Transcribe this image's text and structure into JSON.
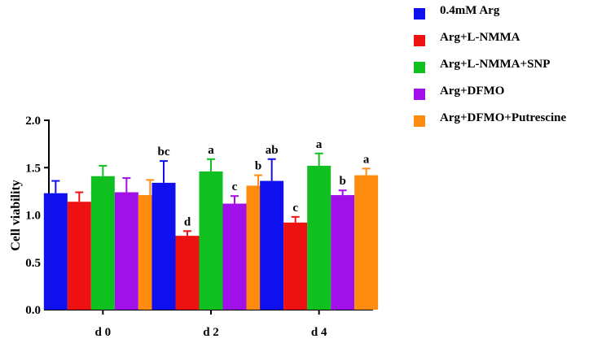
{
  "chart_data": {
    "type": "bar",
    "ylabel": "Cell viability",
    "xlabel": "",
    "ylim": [
      0,
      2.0
    ],
    "yticks": [
      "0.0",
      "0.5",
      "1.0",
      "1.5",
      "2.0"
    ],
    "categories": [
      "d 0",
      "d 2",
      "d 4"
    ],
    "legend_position": "top-right",
    "series": [
      {
        "name": "0.4mM Arg",
        "color": "#1010ee",
        "values": [
          1.23,
          1.34,
          1.36
        ],
        "errors": [
          0.13,
          0.23,
          0.23
        ],
        "labels": [
          "",
          "bc",
          "ab"
        ]
      },
      {
        "name": "Arg+L-NMMA",
        "color": "#ee1111",
        "values": [
          1.14,
          0.78,
          0.92
        ],
        "errors": [
          0.1,
          0.05,
          0.06
        ],
        "labels": [
          "",
          "d",
          "c"
        ]
      },
      {
        "name": "Arg+L-NMMA+SNP",
        "color": "#10c020",
        "values": [
          1.41,
          1.46,
          1.52
        ],
        "errors": [
          0.11,
          0.13,
          0.13
        ],
        "labels": [
          "",
          "a",
          "a"
        ]
      },
      {
        "name": "Arg+DFMO",
        "color": "#a010e8",
        "values": [
          1.24,
          1.12,
          1.21
        ],
        "errors": [
          0.15,
          0.08,
          0.05
        ],
        "labels": [
          "",
          "c",
          "b"
        ]
      },
      {
        "name": "Arg+DFMO+Putrescine",
        "color": "#ff8c10",
        "values": [
          1.21,
          1.31,
          1.42
        ],
        "errors": [
          0.16,
          0.11,
          0.07
        ],
        "labels": [
          "",
          "b",
          "a"
        ]
      }
    ]
  }
}
